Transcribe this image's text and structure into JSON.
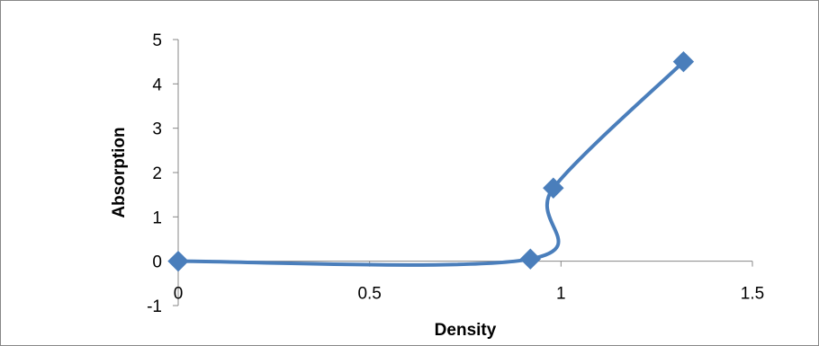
{
  "chart_data": {
    "type": "scatter",
    "xlabel": "Density",
    "ylabel": "Absorption",
    "xlim": [
      0,
      1.5
    ],
    "ylim": [
      -1,
      5
    ],
    "x_ticks": [
      "0",
      "0.5",
      "1",
      "1.5"
    ],
    "y_ticks": [
      "-1",
      "0",
      "1",
      "2",
      "3",
      "4",
      "5"
    ],
    "grid": false,
    "legend": "none",
    "smoothed_line": true,
    "marker": "diamond",
    "series": [
      {
        "color": "#4a7ebb",
        "x": [
          0,
          0.92,
          0.98,
          1.32
        ],
        "y": [
          0,
          0.05,
          1.65,
          4.5
        ]
      }
    ]
  }
}
